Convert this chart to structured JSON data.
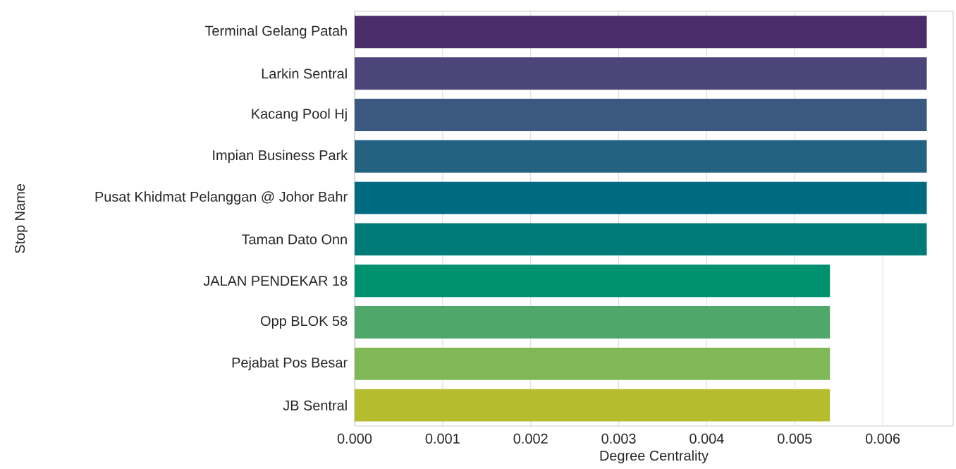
{
  "chart_data": {
    "type": "bar",
    "orientation": "horizontal",
    "categories": [
      "Terminal Gelang Patah",
      "Larkin Sentral",
      "Kacang Pool Hj",
      "Impian Business Park",
      "Pusat Khidmat Pelanggan @ Johor Bahr",
      "Taman Dato Onn",
      "JALAN PENDEKAR 18",
      "Opp BLOK 58",
      "Pejabat Pos Besar",
      "JB Sentral"
    ],
    "values": [
      0.0065,
      0.0065,
      0.0065,
      0.0065,
      0.0065,
      0.0065,
      0.0054,
      0.0054,
      0.0054,
      0.0054
    ],
    "colors": [
      "#4a2c6a",
      "#4c4579",
      "#3b5880",
      "#236281",
      "#006a80",
      "#007b78",
      "#00916f",
      "#4fa86a",
      "#80b857",
      "#b5bd2e"
    ],
    "xlabel": "Degree Centrality",
    "ylabel": "Stop Name",
    "xlim": [
      0,
      0.0068
    ],
    "xticks": [
      {
        "value": 0,
        "label": "0.000"
      },
      {
        "value": 0.001,
        "label": "0.001"
      },
      {
        "value": 0.002,
        "label": "0.002"
      },
      {
        "value": 0.003,
        "label": "0.003"
      },
      {
        "value": 0.004,
        "label": "0.004"
      },
      {
        "value": 0.005,
        "label": "0.005"
      },
      {
        "value": 0.006,
        "label": "0.006"
      }
    ],
    "grid": "x"
  }
}
